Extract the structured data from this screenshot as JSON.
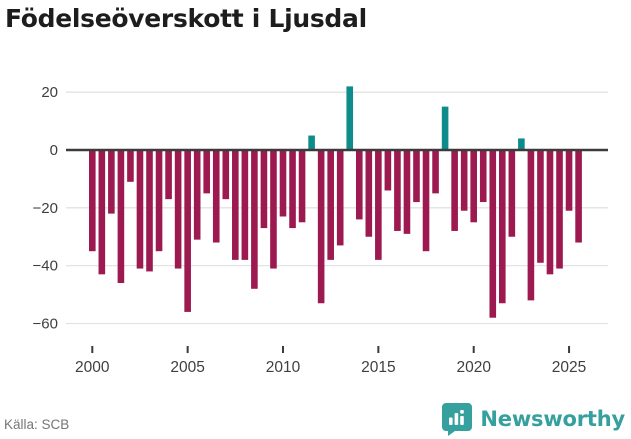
{
  "title": "Födelseöverskott i Ljusdal",
  "source": "Källa: SCB",
  "brand": {
    "name": "Newsworthy",
    "color": "#35A09E",
    "icon": "bar-chart-badge-icon"
  },
  "colors": {
    "negative_bar": "#9C1A50",
    "positive_bar": "#0E8C8C",
    "grid": "#E3E3E3",
    "zero_line": "#3B3B3B",
    "tick_mark": "#3B3B3B",
    "axis_text": "#3F3F3F",
    "title_text": "#1D1D1D",
    "source_text": "#767676"
  },
  "chart_data": {
    "type": "bar",
    "title": "Födelseöverskott i Ljusdal",
    "xlabel": "",
    "ylabel": "",
    "ylim": [
      -65,
      25
    ],
    "grid": true,
    "legend": "none",
    "y_ticks": [
      {
        "label": "20",
        "value": 20
      },
      {
        "label": "0",
        "value": 0
      },
      {
        "label": "−20",
        "value": -20
      },
      {
        "label": "−40",
        "value": -40
      },
      {
        "label": "−60",
        "value": -60
      }
    ],
    "x_ticks": [
      {
        "label": "2000",
        "year": 2000
      },
      {
        "label": "2005",
        "year": 2005
      },
      {
        "label": "2010",
        "year": 2010
      },
      {
        "label": "2015",
        "year": 2015
      },
      {
        "label": "2020",
        "year": 2020
      },
      {
        "label": "2025",
        "year": 2025
      }
    ],
    "categories": [
      "2000 H1",
      "2000 H2",
      "2001 H1",
      "2001 H2",
      "2002 H1",
      "2002 H2",
      "2003 H1",
      "2003 H2",
      "2004 H1",
      "2004 H2",
      "2005 H1",
      "2005 H2",
      "2006 H1",
      "2006 H2",
      "2007 H1",
      "2007 H2",
      "2008 H1",
      "2008 H2",
      "2009 H1",
      "2009 H2",
      "2010 H1",
      "2010 H2",
      "2011 H1",
      "2011 H2",
      "2012 H1",
      "2012 H2",
      "2013 H1",
      "2013 H2",
      "2014 H1",
      "2014 H2",
      "2015 H1",
      "2015 H2",
      "2016 H1",
      "2016 H2",
      "2017 H1",
      "2017 H2",
      "2018 H1",
      "2018 H2",
      "2019 H1",
      "2019 H2",
      "2020 H1",
      "2020 H2",
      "2021 H1",
      "2021 H2",
      "2022 H1",
      "2022 H2",
      "2023 H1",
      "2023 H2",
      "2024 H1",
      "2024 H2",
      "2025 H1",
      "2025 H2"
    ],
    "values": [
      -35,
      -43,
      -22,
      -46,
      -11,
      -41,
      -42,
      -35,
      -17,
      -41,
      -56,
      -31,
      -15,
      -32,
      -17,
      -38,
      -38,
      -48,
      -27,
      -41,
      -23,
      -27,
      -25,
      5,
      -53,
      -38,
      -33,
      22,
      -24,
      -30,
      -38,
      -14,
      -28,
      -29,
      -18,
      -35,
      -15,
      15,
      -28,
      -21,
      -25,
      -18,
      -58,
      -53,
      -30,
      4,
      -52,
      -39,
      -43,
      -41,
      -21,
      -32
    ]
  }
}
